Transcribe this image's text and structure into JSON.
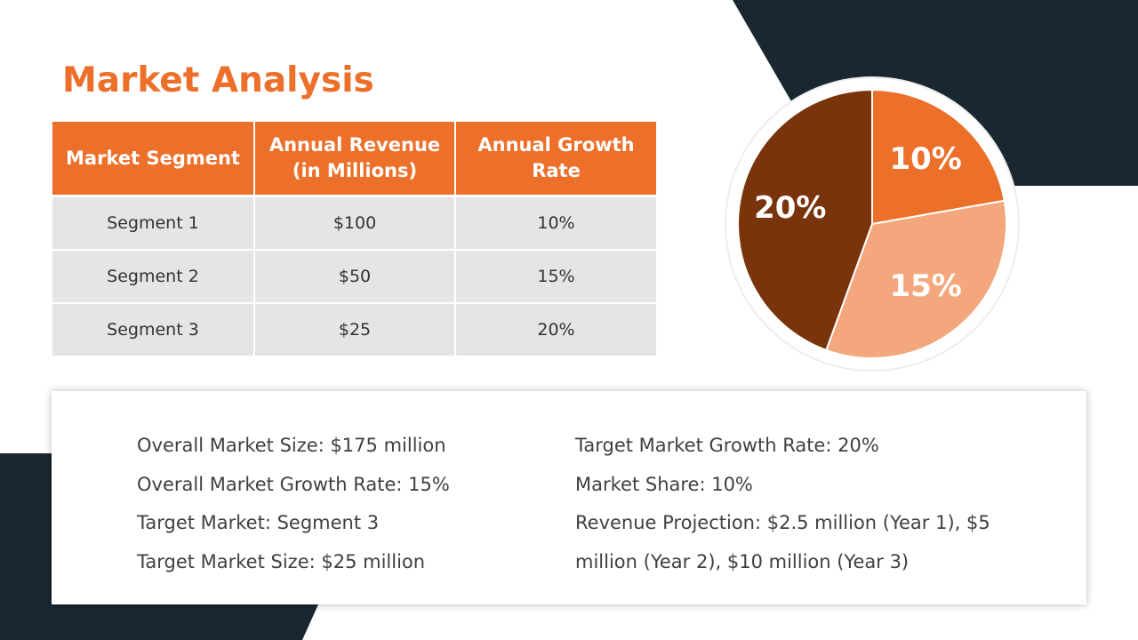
{
  "slide": {
    "title": "Market Analysis",
    "colors": {
      "accent": "#EC6F2A",
      "dark": "#192730",
      "cell_bg": "#E5E5E5"
    }
  },
  "table": {
    "headers": [
      "Market Segment",
      "Annual Revenue (in Millions)",
      "Annual Growth Rate"
    ],
    "rows": [
      [
        "Segment 1",
        "$100",
        "10%"
      ],
      [
        "Segment 2",
        "$50",
        "15%"
      ],
      [
        "Segment 3",
        "$25",
        "20%"
      ]
    ]
  },
  "chart_data": {
    "type": "pie",
    "slices": [
      {
        "label": "10%",
        "value": 10,
        "color": "#EC6F2A"
      },
      {
        "label": "15%",
        "value": 15,
        "color": "#F4A77C"
      },
      {
        "label": "20%",
        "value": 20,
        "color": "#7A340C"
      }
    ]
  },
  "info": {
    "left": [
      "Overall Market Size: $175 million",
      "Overall Market Growth Rate: 15%",
      "Target Market: Segment 3",
      "Target Market Size: $25 million"
    ],
    "right": [
      "Target Market Growth Rate: 20%",
      "Market Share: 10%",
      "Revenue Projection: $2.5 million (Year 1), $5",
      "million (Year 2), $10 million (Year 3)"
    ]
  }
}
